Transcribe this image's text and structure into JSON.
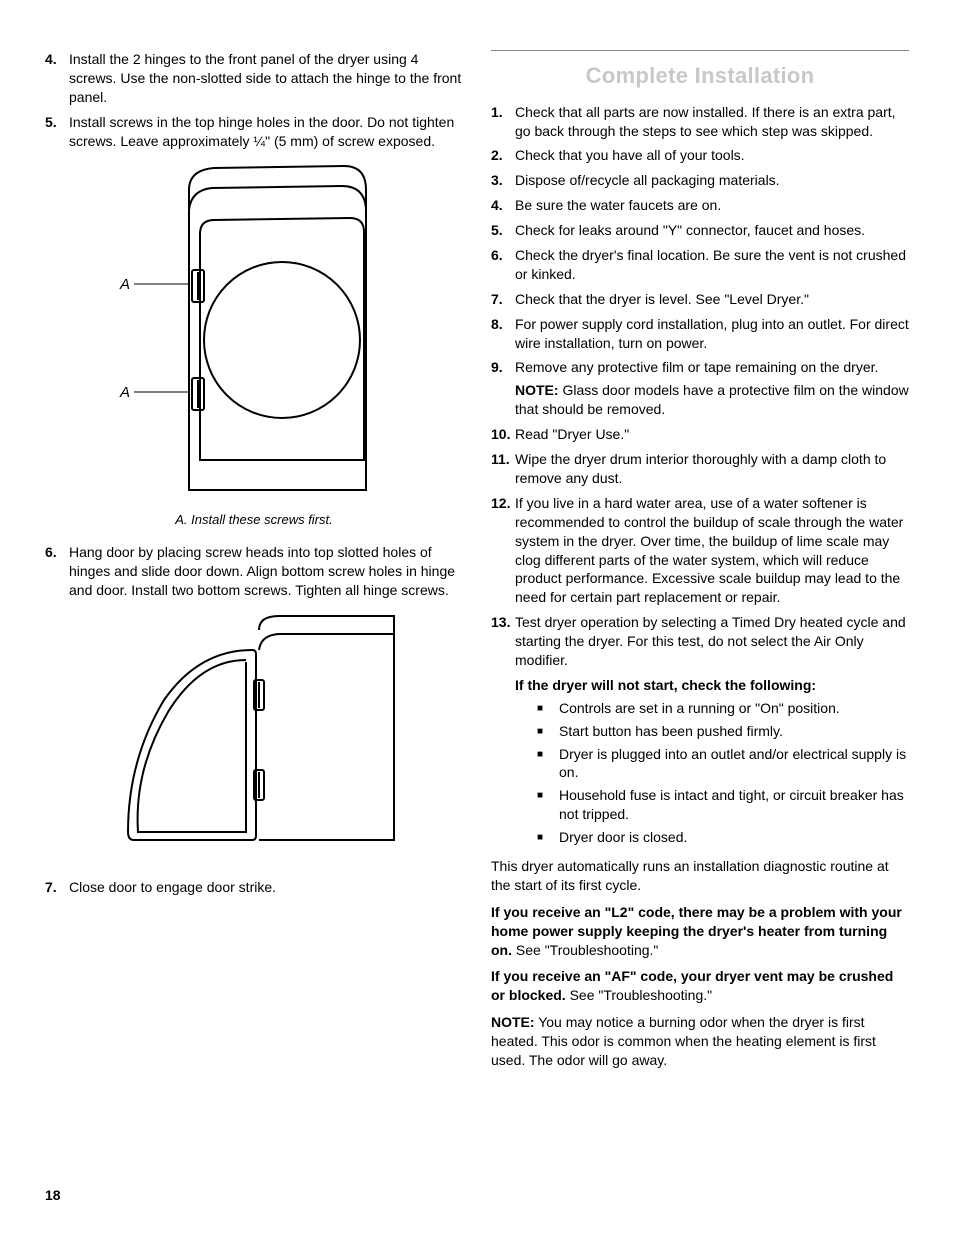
{
  "left": {
    "items": [
      {
        "num": "4.",
        "text": "Install the 2 hinges to the front panel of the dryer using 4 screws. Use the non-slotted side to attach the hinge to the front panel."
      },
      {
        "num": "5.",
        "text": "Install screws in the top hinge holes in the door. Do not tighten screws. Leave approximately ¼\" (5 mm) of screw exposed."
      }
    ],
    "fig1_caption": "A. Install these screws first.",
    "fig1_labelA": "A",
    "items2": [
      {
        "num": "6.",
        "text": "Hang door by placing screw heads into top slotted holes of hinges and slide door down. Align bottom screw holes in hinge and door. Install two bottom screws. Tighten all hinge screws."
      }
    ],
    "items3": [
      {
        "num": "7.",
        "text": "Close door to engage door strike."
      }
    ]
  },
  "right": {
    "title": "Complete Installation",
    "steps": [
      {
        "num": "1.",
        "text": "Check that all parts are now installed. If there is an extra part, go back through the steps to see which step was skipped."
      },
      {
        "num": "2.",
        "text": "Check that you have all of your tools."
      },
      {
        "num": "3.",
        "text": "Dispose of/recycle all packaging materials."
      },
      {
        "num": "4.",
        "text": "Be sure the water faucets are on."
      },
      {
        "num": "5.",
        "text": "Check for leaks around \"Y\" connector, faucet and hoses."
      },
      {
        "num": "6.",
        "text": "Check the dryer's final location. Be sure the vent is not crushed or kinked."
      },
      {
        "num": "7.",
        "text": "Check that the dryer is level. See \"Level Dryer.\""
      },
      {
        "num": "8.",
        "text": "For power supply cord installation, plug into an outlet. For direct wire installation, turn on power."
      }
    ],
    "step9_num": "9.",
    "step9_text": "Remove any protective film or tape remaining on the dryer.",
    "step9_note_label": "NOTE:",
    "step9_note_text": " Glass door models have a protective film on the window that should be removed.",
    "steps_b": [
      {
        "num": "10.",
        "text": "Read \"Dryer Use.\""
      },
      {
        "num": "11.",
        "text": "Wipe the dryer drum interior thoroughly with a damp cloth to remove any dust."
      },
      {
        "num": "12.",
        "text": "If you live in a hard water area, use of a water softener is recommended to control the buildup of scale through the water system in the dryer. Over time, the buildup of lime scale may clog different parts of the water system, which will reduce product performance. Excessive scale buildup may lead to the need for certain part replacement or repair."
      }
    ],
    "step13_num": "13.",
    "step13_text": "Test dryer operation by selecting a Timed Dry heated cycle and starting the dryer. For this test, do not select the Air Only modifier.",
    "check_heading": "If the dryer will not start, check the following:",
    "bullets": [
      "Controls are set in a running or \"On\" position.",
      "Start button has been pushed firmly.",
      "Dryer is plugged into an outlet and/or electrical supply is on.",
      "Household fuse is intact and tight, or circuit breaker has not tripped.",
      "Dryer door is closed."
    ],
    "diag_text": "This dryer automatically runs an installation diagnostic routine at the start of its first cycle.",
    "l2_bold": "If you receive an \"L2\" code, there may be a problem with your home power supply keeping the dryer's heater from turning on.",
    "l2_rest": " See \"Troubleshooting.\"",
    "af_bold": "If you receive an \"AF\" code, your dryer vent may be crushed or blocked.",
    "af_rest": " See \"Troubleshooting.\"",
    "final_note_label": "NOTE:",
    "final_note_text": " You may notice a burning odor when the dryer is first heated. This odor is common when the heating element is first used. The odor will go away."
  },
  "pageNumber": "18"
}
